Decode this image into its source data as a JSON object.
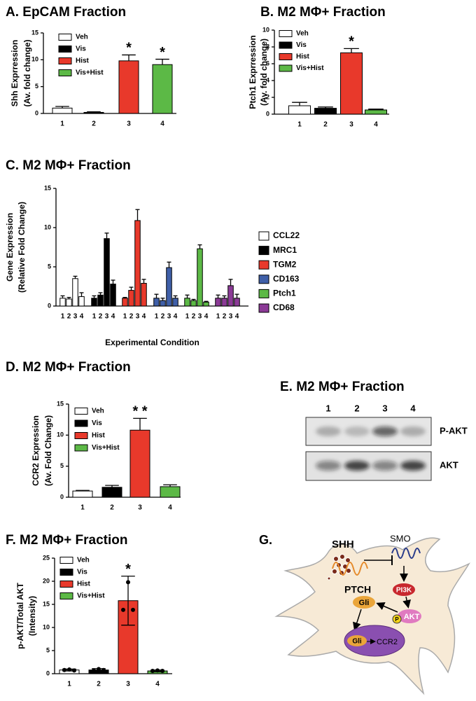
{
  "chart_data": [
    {
      "type": "bar",
      "title": "A. EpCAM Fraction",
      "ylabel": [
        "Shh Exprression",
        "(Av. fold change)"
      ],
      "categories": [
        "1",
        "2",
        "3",
        "4"
      ],
      "values": [
        1.0,
        0.2,
        9.8,
        9.1
      ],
      "errors": [
        0.3,
        0.1,
        1.1,
        1.0
      ],
      "colors": [
        "#ffffff",
        "#000000",
        "#e8392b",
        "#5cb946"
      ],
      "legend": [
        "Veh",
        "Vis",
        "Hist",
        "Vis+Hist"
      ],
      "significance": [
        null,
        null,
        "*",
        "*"
      ],
      "error_bars": "up",
      "ylim": [
        0,
        15
      ],
      "yticks": [
        0,
        5,
        10,
        15
      ]
    },
    {
      "type": "bar",
      "title": "B. M2 MΦ+ Fraction",
      "ylabel": [
        "Ptch1 Exprression",
        "(Av. fold change)"
      ],
      "categories": [
        "1",
        "2",
        "3",
        "4"
      ],
      "values": [
        1.0,
        0.7,
        7.3,
        0.5
      ],
      "errors": [
        0.4,
        0.15,
        0.5,
        0.1
      ],
      "colors": [
        "#ffffff",
        "#000000",
        "#e8392b",
        "#5cb946"
      ],
      "legend": [
        "Veh",
        "Vis",
        "Hist",
        "Vis+Hist"
      ],
      "significance": [
        null,
        null,
        "*",
        null
      ],
      "error_bars": "up",
      "ylim": [
        0,
        10
      ],
      "yticks": [
        0,
        2,
        4,
        6,
        8,
        10
      ]
    },
    {
      "type": "grouped_bar",
      "title": "C. M2 MΦ+ Fraction",
      "ylabel": [
        "Gene Expression",
        "(Relative Fold Change)"
      ],
      "xlabel": "Experimental Condition",
      "categories": [
        "1",
        "2",
        "3",
        "4"
      ],
      "error_bars": "up",
      "series": [
        {
          "name": "CCL22",
          "color": "#ffffff",
          "values": [
            1.0,
            0.9,
            3.5,
            1.2
          ],
          "errors": [
            0.3,
            0.2,
            0.3,
            0.5
          ]
        },
        {
          "name": "MRC1",
          "color": "#000000",
          "values": [
            1.0,
            1.4,
            8.6,
            2.8
          ],
          "errors": [
            0.3,
            0.3,
            0.7,
            0.5
          ]
        },
        {
          "name": "TGM2",
          "color": "#e8392b",
          "values": [
            1.0,
            2.0,
            10.9,
            2.9
          ],
          "errors": [
            0.1,
            0.4,
            1.4,
            0.5
          ]
        },
        {
          "name": "CD163",
          "color": "#3f5fa8",
          "values": [
            1.0,
            0.7,
            4.9,
            1.0
          ],
          "errors": [
            0.5,
            0.3,
            0.7,
            0.3
          ]
        },
        {
          "name": "Ptch1",
          "color": "#5cb946",
          "values": [
            1.0,
            0.7,
            7.3,
            0.5
          ],
          "errors": [
            0.4,
            0.15,
            0.5,
            0.1
          ]
        },
        {
          "name": "CD68",
          "color": "#8b3a96",
          "values": [
            1.0,
            1.0,
            2.6,
            1.0
          ],
          "errors": [
            0.4,
            0.3,
            0.8,
            0.5
          ]
        }
      ],
      "ylim": [
        0,
        15
      ],
      "yticks": [
        0,
        5,
        10,
        15
      ]
    },
    {
      "type": "bar",
      "title": "D. M2 MΦ+ Fraction",
      "ylabel": [
        "CCR2 Expression",
        "(Av. Fold Change)"
      ],
      "categories": [
        "1",
        "2",
        "3",
        "4"
      ],
      "values": [
        1.0,
        1.6,
        10.8,
        1.7
      ],
      "errors": [
        0.1,
        0.3,
        1.9,
        0.3
      ],
      "colors": [
        "#ffffff",
        "#000000",
        "#e8392b",
        "#5cb946"
      ],
      "legend": [
        "Veh",
        "Vis",
        "Hist",
        "Vis+Hist"
      ],
      "significance": [
        null,
        null,
        "* *",
        null
      ],
      "error_bars": "up",
      "ylim": [
        0,
        15
      ],
      "yticks": [
        0,
        5,
        10,
        15
      ]
    },
    {
      "type": "bar",
      "title": "F. M2 MΦ+ Fraction",
      "ylabel": [
        "p-AKT/Total AKT",
        "(Intensity)"
      ],
      "categories": [
        "1",
        "2",
        "3",
        "4"
      ],
      "values": [
        0.8,
        0.8,
        15.8,
        0.6
      ],
      "errors": [
        0.2,
        0.3,
        5.3,
        0.2
      ],
      "points": [
        [
          0.8,
          0.9,
          0.7
        ],
        [
          0.7,
          1.0,
          0.8
        ],
        [
          13.8,
          19.8,
          13.8
        ],
        [
          0.6,
          0.7,
          0.6
        ]
      ],
      "colors": [
        "#ffffff",
        "#000000",
        "#e8392b",
        "#5cb946"
      ],
      "legend": [
        "Veh",
        "Vis",
        "Hist",
        "Vis+Hist"
      ],
      "significance": [
        null,
        null,
        "*",
        null
      ],
      "error_bars": "both",
      "ylim": [
        0,
        25
      ],
      "yticks": [
        0,
        5,
        10,
        15,
        20,
        25
      ]
    }
  ],
  "blot": {
    "title": "E. M2 MΦ+ Fraction",
    "lanes": [
      "1",
      "2",
      "3",
      "4"
    ],
    "rows": [
      "P-AKT",
      "AKT"
    ]
  },
  "diagram": {
    "label": "G.",
    "shh": "SHH",
    "ptch": "PTCH",
    "smo": "SMO",
    "pi3k": "PI3K",
    "gli": "Gli",
    "akt": "AKT",
    "p": "P",
    "gli_nucleus": "Gli",
    "ccr2": "CCR2"
  }
}
